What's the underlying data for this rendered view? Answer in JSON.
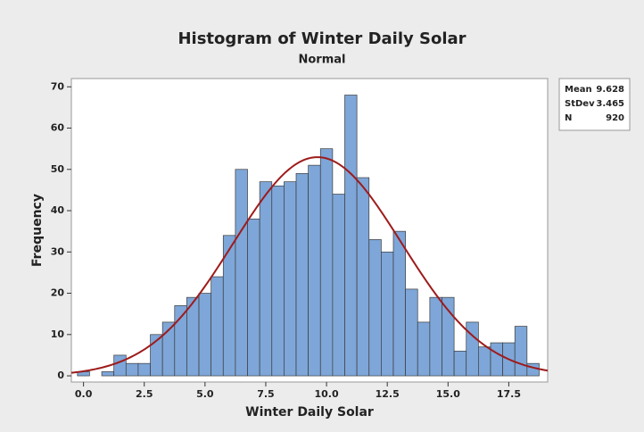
{
  "chart_data": {
    "type": "histogram",
    "title": "Histogram of Winter Daily Solar",
    "subtitle": "Normal",
    "x_label": "Winter Daily Solar",
    "y_label": "Frequency",
    "bins": [
      -0.25,
      0.25,
      0.75,
      1.25,
      1.75,
      2.25,
      2.75,
      3.25,
      3.75,
      4.25,
      4.75,
      5.25,
      5.75,
      6.25,
      6.75,
      7.25,
      7.75,
      8.25,
      8.75,
      9.25,
      9.75,
      10.25,
      10.75,
      11.25,
      11.75,
      12.25,
      12.75,
      13.25,
      13.75,
      14.25,
      14.75,
      15.25,
      15.75,
      16.25,
      16.75,
      17.25,
      17.75,
      18.25,
      18.75
    ],
    "counts": [
      1,
      0,
      1,
      5,
      3,
      3,
      10,
      13,
      17,
      19,
      20,
      24,
      34,
      50,
      38,
      47,
      46,
      47,
      49,
      51,
      55,
      44,
      68,
      48,
      33,
      30,
      35,
      21,
      13,
      19,
      19,
      6,
      13,
      7,
      8,
      8,
      12,
      3
    ],
    "color": "#7ea6d8",
    "curve_color": "#9e1b1b",
    "stats": [
      {
        "label": "Mean",
        "value": 9.628
      },
      {
        "label": "StDev",
        "value": 3.465
      },
      {
        "label": "N",
        "value": 920
      }
    ],
    "xlim": [
      -0.5,
      19.1
    ],
    "ylim": [
      -1.5,
      72
    ],
    "xticks": [
      {
        "value": 0,
        "label": "0.0"
      },
      2.5,
      {
        "value": 5,
        "label": "5.0"
      },
      7.5,
      {
        "value": 10,
        "label": "10.0"
      },
      12.5,
      {
        "value": 15,
        "label": "15.0"
      },
      17.5
    ],
    "yticks": [
      0,
      10,
      20,
      30,
      40,
      50,
      60,
      70
    ]
  }
}
